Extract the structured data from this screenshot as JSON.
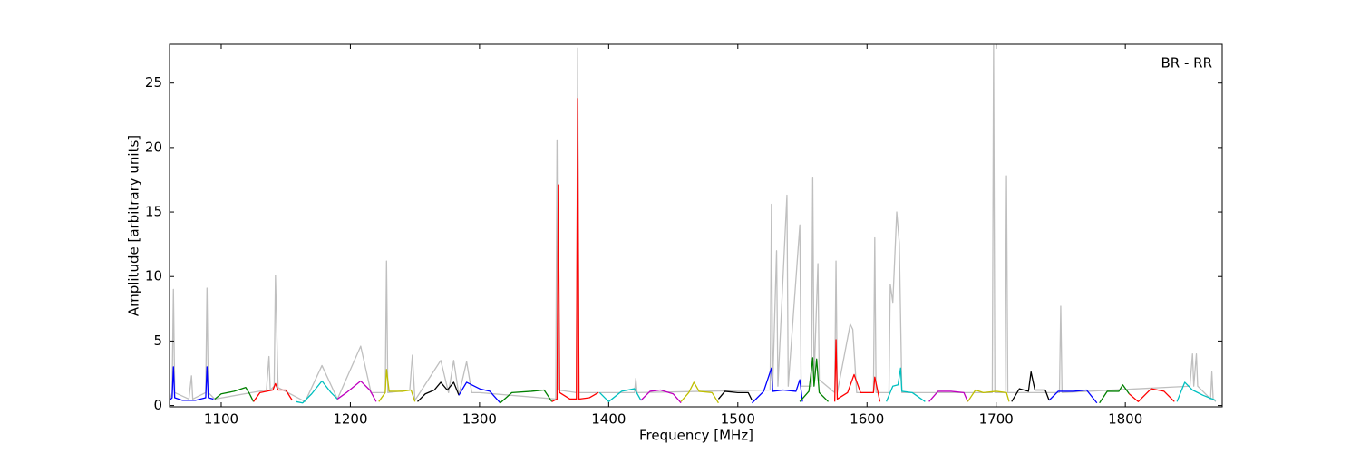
{
  "chart_data": {
    "type": "line",
    "x_label": "Frequency [MHz]",
    "y_label": "Amplitude [arbitrary units]",
    "annotation": "BR - RR",
    "xlim": [
      1060,
      1875
    ],
    "ylim": [
      -0.1,
      28
    ],
    "xticks": [
      1100,
      1200,
      1300,
      1400,
      1500,
      1600,
      1700,
      1800
    ],
    "yticks": [
      0,
      5,
      10,
      15,
      20,
      25
    ],
    "series": [
      {
        "color": "#bfbfbf",
        "x": [
          1060,
          1062,
          1063,
          1064,
          1075,
          1077,
          1078,
          1088,
          1089,
          1090,
          1095,
          1135,
          1137,
          1138,
          1141,
          1142,
          1143,
          1144,
          1165,
          1178,
          1190,
          1208,
          1216,
          1227,
          1228,
          1229,
          1246,
          1248,
          1250,
          1270,
          1276,
          1280,
          1284,
          1290,
          1294,
          1300,
          1359,
          1360,
          1361,
          1375,
          1376,
          1377,
          1420,
          1421,
          1422,
          1525,
          1526,
          1527,
          1530,
          1531,
          1538,
          1539,
          1548,
          1549,
          1557,
          1558,
          1559,
          1562,
          1563,
          1575,
          1576,
          1577,
          1587,
          1589,
          1592,
          1605,
          1606,
          1607,
          1617,
          1618,
          1620,
          1623,
          1625,
          1627,
          1697,
          1698,
          1699,
          1707,
          1708,
          1709,
          1749,
          1750,
          1751,
          1850,
          1852,
          1853,
          1855,
          1856,
          1866,
          1867,
          1868,
          1870
        ],
        "values": [
          0.3,
          1,
          9,
          1,
          0.5,
          2.3,
          0.5,
          1,
          9.1,
          1,
          0.5,
          1.2,
          3.8,
          1.2,
          1.5,
          10.1,
          5.8,
          1.4,
          0.3,
          3.1,
          0.5,
          4.6,
          1,
          1,
          11.2,
          1,
          1.2,
          3.9,
          0.4,
          3.5,
          1,
          3.5,
          0.8,
          3.4,
          1,
          1,
          0.5,
          20.6,
          1.2,
          1,
          27.7,
          1,
          1,
          2.1,
          1,
          1.2,
          15.6,
          1.5,
          12,
          1.5,
          16.3,
          1.5,
          14,
          1.5,
          1.5,
          17.7,
          2,
          11,
          2,
          1,
          11.2,
          1,
          6.3,
          5.9,
          1,
          1,
          13,
          1,
          1,
          9.4,
          8,
          15,
          12.6,
          1,
          1,
          27.9,
          1,
          1,
          17.8,
          1,
          1,
          7.7,
          1,
          1.5,
          4,
          1.5,
          4,
          1.5,
          0.5,
          2.6,
          0.5,
          0.3
        ]
      },
      {
        "color": "#0000ff",
        "x": [
          1060,
          1062,
          1063,
          1064,
          1070,
          1080,
          1088,
          1089,
          1090,
          1094
        ],
        "values": [
          0.4,
          0.6,
          3,
          0.6,
          0.4,
          0.4,
          0.6,
          3,
          0.6,
          0.5
        ]
      },
      {
        "color": "#008000",
        "x": [
          1095,
          1100,
          1110,
          1119,
          1122,
          1125
        ],
        "values": [
          0.5,
          0.9,
          1.1,
          1.4,
          0.9,
          0.3
        ]
      },
      {
        "color": "#ff0000",
        "x": [
          1125,
          1130,
          1140,
          1142,
          1144,
          1150,
          1155
        ],
        "values": [
          0.3,
          1,
          1.2,
          1.7,
          1.2,
          1.2,
          0.4
        ]
      },
      {
        "color": "#00bfbf",
        "x": [
          1158,
          1163,
          1170,
          1178,
          1185,
          1190
        ],
        "values": [
          0.3,
          0.2,
          0.9,
          1.9,
          1,
          0.5
        ]
      },
      {
        "color": "#bf00bf",
        "x": [
          1190,
          1197,
          1208,
          1215,
          1220
        ],
        "values": [
          0.5,
          1,
          1.9,
          1.2,
          0.3
        ]
      },
      {
        "color": "#bfbf00",
        "x": [
          1222,
          1227,
          1228,
          1230,
          1240,
          1247,
          1250
        ],
        "values": [
          0.3,
          1,
          2.8,
          1.1,
          1.1,
          1.2,
          0.3
        ]
      },
      {
        "color": "#000000",
        "x": [
          1252,
          1258,
          1265,
          1270,
          1275,
          1280,
          1284
        ],
        "values": [
          0.3,
          0.9,
          1.2,
          1.8,
          1.2,
          1.8,
          0.8
        ]
      },
      {
        "color": "#0000ff",
        "x": [
          1284,
          1290,
          1300,
          1308,
          1316
        ],
        "values": [
          0.8,
          1.8,
          1.3,
          1.1,
          0.2
        ]
      },
      {
        "color": "#008000",
        "x": [
          1316,
          1325,
          1340,
          1350,
          1356
        ],
        "values": [
          0.2,
          1,
          1.1,
          1.2,
          0.3
        ]
      },
      {
        "color": "#ff0000",
        "x": [
          1356,
          1360,
          1361,
          1362,
          1370,
          1375,
          1376,
          1377,
          1385,
          1392
        ],
        "values": [
          0.3,
          0.5,
          17.1,
          1,
          0.5,
          0.5,
          23.8,
          0.5,
          0.6,
          1
        ]
      },
      {
        "color": "#00bfbf",
        "x": [
          1393,
          1400,
          1410,
          1420,
          1425
        ],
        "values": [
          1,
          0.3,
          1.1,
          1.3,
          0.4
        ]
      },
      {
        "color": "#bf00bf",
        "x": [
          1425,
          1432,
          1440,
          1450,
          1456
        ],
        "values": [
          0.4,
          1.1,
          1.2,
          0.9,
          0.2
        ]
      },
      {
        "color": "#bfbf00",
        "x": [
          1456,
          1462,
          1466,
          1470,
          1480,
          1485
        ],
        "values": [
          0.3,
          1,
          1.8,
          1.1,
          1,
          0.2
        ]
      },
      {
        "color": "#000000",
        "x": [
          1485,
          1490,
          1500,
          1508,
          1511
        ],
        "values": [
          0.5,
          1.1,
          1,
          1,
          0.4
        ]
      },
      {
        "color": "#0000ff",
        "x": [
          1511,
          1520,
          1526,
          1527,
          1535,
          1545,
          1548,
          1550
        ],
        "values": [
          0.2,
          1.1,
          2.9,
          1.1,
          1.2,
          1.1,
          2,
          0.3
        ]
      },
      {
        "color": "#008000",
        "x": [
          1548,
          1555,
          1558,
          1559,
          1561,
          1563,
          1570
        ],
        "values": [
          0.3,
          1.1,
          3.7,
          1.5,
          3.6,
          1,
          0.3
        ]
      },
      {
        "color": "#ff0000",
        "x": [
          1575,
          1576,
          1577,
          1585,
          1590,
          1595,
          1605,
          1606,
          1610
        ],
        "values": [
          0.3,
          5.1,
          0.5,
          1,
          2.4,
          1,
          1,
          2.2,
          0.3
        ]
      },
      {
        "color": "#00bfbf",
        "x": [
          1615,
          1620,
          1624,
          1626,
          1627,
          1635,
          1645
        ],
        "values": [
          0.3,
          1.5,
          1.6,
          2.9,
          1.1,
          1,
          0.3
        ]
      },
      {
        "color": "#bf00bf",
        "x": [
          1648,
          1655,
          1665,
          1675,
          1678
        ],
        "values": [
          0.3,
          1.1,
          1.1,
          1,
          0.3
        ]
      },
      {
        "color": "#bfbf00",
        "x": [
          1678,
          1684,
          1690,
          1700,
          1708,
          1710
        ],
        "values": [
          0.3,
          1.2,
          1,
          1.1,
          1,
          0.3
        ]
      },
      {
        "color": "#000000",
        "x": [
          1712,
          1718,
          1725,
          1727,
          1730,
          1738,
          1741
        ],
        "values": [
          0.3,
          1.3,
          1.1,
          2.6,
          1.2,
          1.2,
          0.4
        ]
      },
      {
        "color": "#0000ff",
        "x": [
          1741,
          1748,
          1760,
          1770,
          1778
        ],
        "values": [
          0.4,
          1.1,
          1.1,
          1.2,
          0.2
        ]
      },
      {
        "color": "#008000",
        "x": [
          1780,
          1786,
          1795,
          1798,
          1803
        ],
        "values": [
          0.2,
          1.1,
          1.1,
          1.6,
          0.9
        ]
      },
      {
        "color": "#ff0000",
        "x": [
          1803,
          1810,
          1820,
          1830,
          1838
        ],
        "values": [
          0.9,
          0.3,
          1.3,
          1.1,
          0.3
        ]
      },
      {
        "color": "#00bfbf",
        "x": [
          1840,
          1846,
          1852,
          1860,
          1870
        ],
        "values": [
          0.3,
          1.8,
          1.2,
          0.8,
          0.4
        ]
      }
    ]
  }
}
